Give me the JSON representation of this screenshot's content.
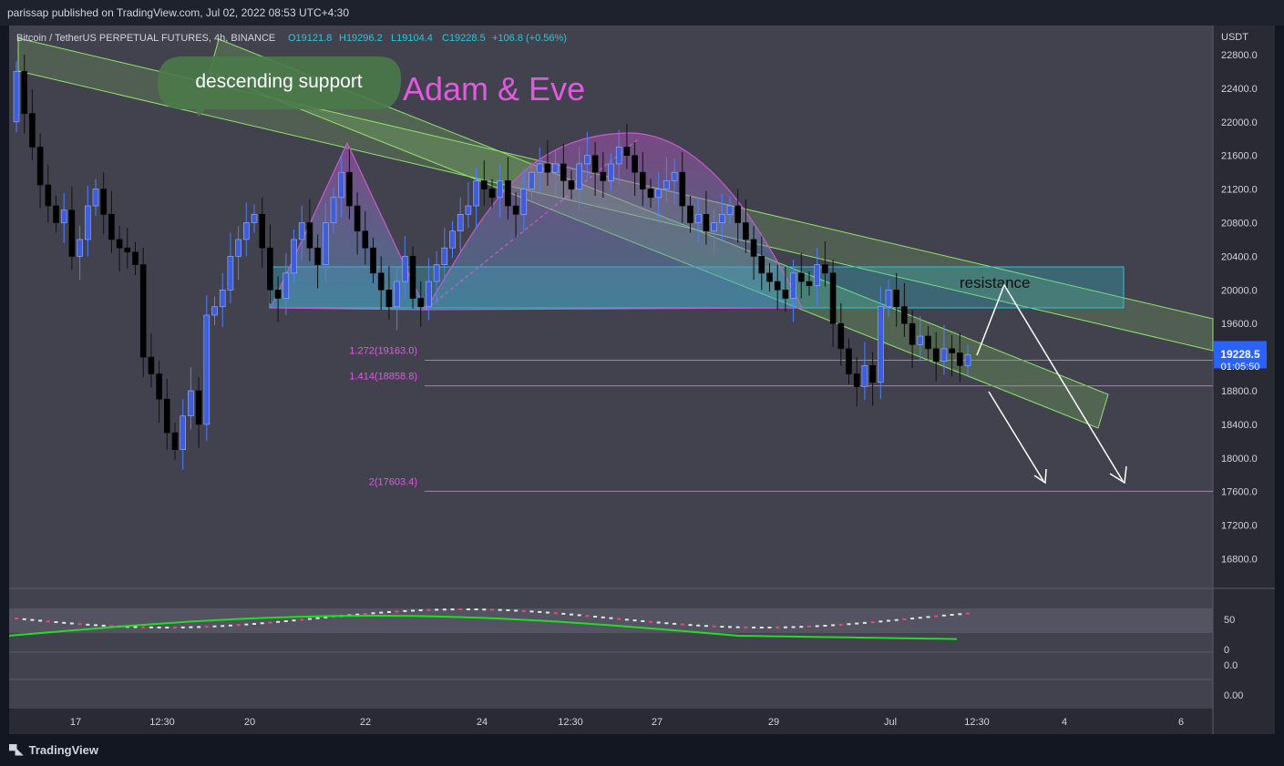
{
  "header": {
    "published": "parissap published on TradingView.com, Jul 02, 2022 08:53 UTC+4:30"
  },
  "legend": {
    "symbol": "Bitcoin / TetherUS PERPETUAL FUTURES, 4h, BINANCE",
    "open": "O19121.8",
    "high": "H19296.2",
    "low": "L19104.4",
    "close": "C19228.5",
    "change": "+106.8 (+0.56%)"
  },
  "annotations": {
    "bubble": "descending support",
    "pattern": "Adam & Eve",
    "resistance": "resistance"
  },
  "colors": {
    "up": "#3f5ed8",
    "down": "#000000",
    "fib": "#e05ae0",
    "channel": "#8fe56b",
    "zone": "#2ec4d6",
    "rsi": "#22dd22",
    "price_tag": "#2962ff"
  },
  "price_tag": {
    "price": "19228.5",
    "countdown": "01:05:50"
  },
  "footer": {
    "brand": "TradingView"
  },
  "chart_data": [
    {
      "type": "candlestick",
      "currency_label": "USDT",
      "ylim": [
        16400,
        23000
      ],
      "y_ticks": [
        "22800.0",
        "22400.0",
        "22000.0",
        "21600.0",
        "21200.0",
        "20800.0",
        "20400.0",
        "20000.0",
        "19600.0",
        "18800.0",
        "18400.0",
        "18000.0",
        "17600.0",
        "17200.0",
        "16800.0"
      ],
      "x_ticks": [
        "17",
        "12:30",
        "20",
        "22",
        "24",
        "12:30",
        "27",
        "29",
        "Jul",
        "12:30",
        "4",
        "6"
      ],
      "fib_levels": [
        {
          "label": "1.272(19163.0)",
          "price": 19163.0
        },
        {
          "label": "1.414(18858.8)",
          "price": 18858.8
        },
        {
          "label": "2(17603.4)",
          "price": 17603.4
        }
      ],
      "resistance_zone": [
        19800,
        20280
      ],
      "last": 19228.5,
      "closes": [
        22600,
        22100,
        21700,
        21250,
        21000,
        20800,
        20950,
        20400,
        20600,
        21000,
        21200,
        20900,
        20600,
        20500,
        20450,
        20300,
        19200,
        19000,
        18700,
        18300,
        18100,
        18500,
        18800,
        18400,
        19700,
        19800,
        20000,
        20400,
        20600,
        20800,
        20900,
        20500,
        20000,
        19900,
        20200,
        20600,
        20800,
        20500,
        20300,
        20800,
        21100,
        21400,
        21000,
        20700,
        20500,
        20200,
        20000,
        19800,
        20100,
        20400,
        19900,
        19800,
        20100,
        20300,
        20500,
        20700,
        20900,
        21000,
        21300,
        21200,
        21100,
        21300,
        21000,
        20900,
        21200,
        21400,
        21500,
        21400,
        21500,
        21300,
        21200,
        21500,
        21600,
        21400,
        21300,
        21500,
        21700,
        21600,
        21400,
        21200,
        21100,
        21200,
        21300,
        21400,
        21000,
        20800,
        20900,
        20700,
        20800,
        20900,
        21000,
        20800,
        20600,
        20400,
        20200,
        20100,
        20000,
        19900,
        20200,
        20100,
        20050,
        20300,
        20200,
        19600,
        19300,
        19000,
        18850,
        19100,
        18900,
        19800,
        20000,
        19800,
        19600,
        19350,
        19450,
        19300,
        19150,
        19300,
        19250,
        19100,
        19228.5
      ],
      "indicator": {
        "type": "histogram+oscillator",
        "y_ticks": [
          "50",
          "0",
          "0.0",
          "0.00"
        ]
      }
    }
  ]
}
